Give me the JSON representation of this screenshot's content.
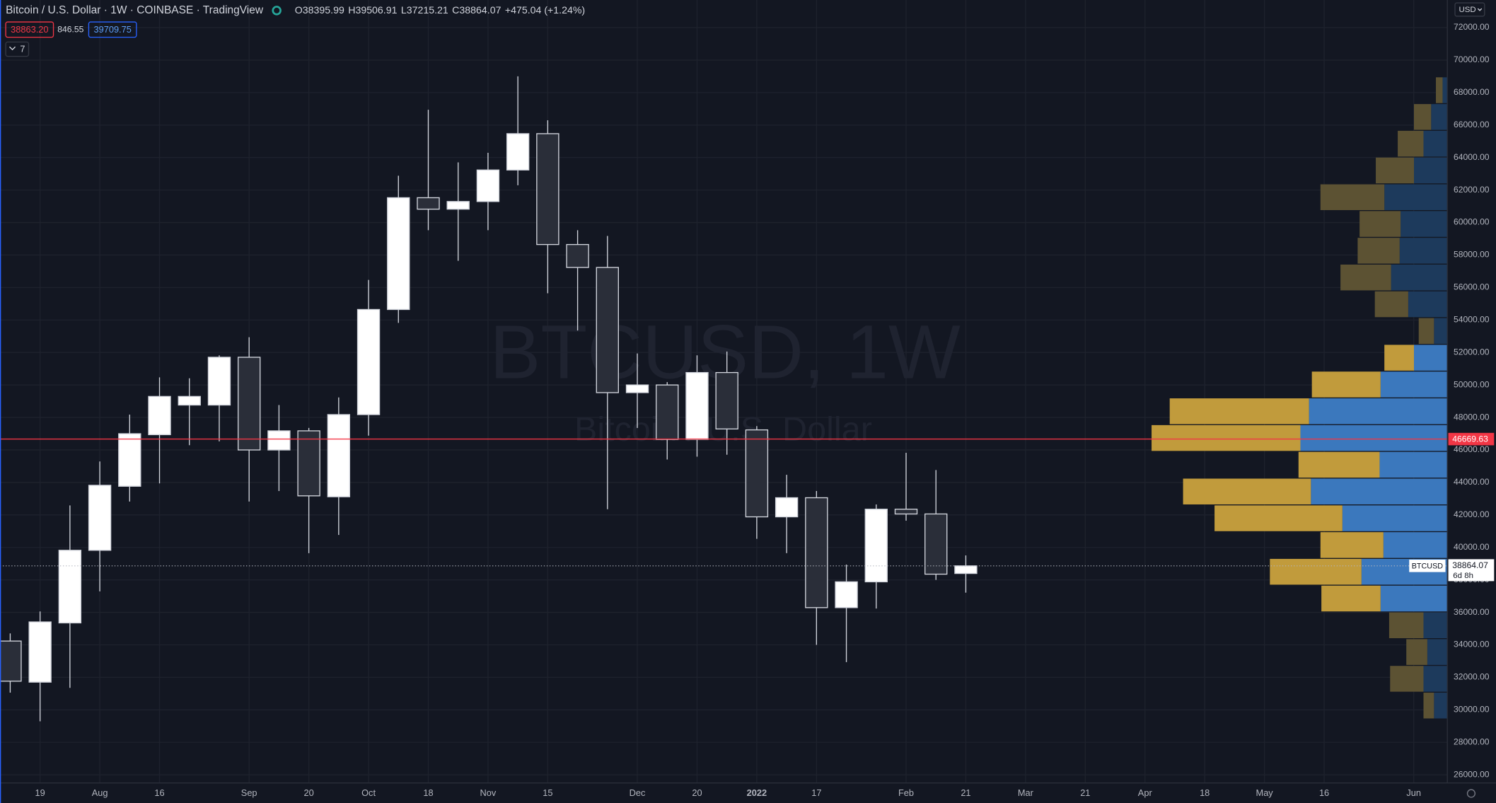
{
  "chart_data": {
    "type": "candlestick",
    "title": "Bitcoin / U.S. Dollar · 1W · COINBASE · TradingView",
    "header_values": [
      "O38395.99",
      "H39506.91",
      "L37215.21",
      "C38864.07",
      "+475.04 (+1.24%)"
    ],
    "bid": "38863.20",
    "spread": 846.55,
    "ask": "39709.75",
    "indicator_badge": "7",
    "currency": "USD",
    "watermark": "BTCUSD, 1W",
    "watermark_subtitle": "Bitcoin / U.S. Dollar",
    "symbol": "BTCUSD",
    "countdown": "6d 8h",
    "categories": [
      null,
      "19",
      null,
      "Aug",
      null,
      "16",
      null,
      null,
      "Sep",
      null,
      "20",
      null,
      "Oct",
      null,
      "18",
      null,
      "Nov",
      null,
      "15",
      null,
      null,
      "Dec",
      null,
      "20",
      null,
      "2022",
      null,
      "17",
      null,
      null,
      "Feb",
      null,
      "21",
      null,
      "Mar",
      null,
      "21",
      null,
      "Apr",
      null,
      "18",
      null,
      "May",
      null,
      "16",
      null,
      null,
      "Jun",
      null
    ],
    "open": [
      34235,
      31706,
      35353,
      39824,
      43765,
      46941,
      48765,
      48765,
      51706,
      46000,
      47176,
      43118,
      48176,
      54647,
      61529,
      60824,
      61294,
      63235,
      65471,
      58647,
      57235,
      49529,
      50000,
      46647,
      50765,
      47235,
      41882,
      43059,
      36294,
      37882,
      42353,
      42059,
      38395.99,
      null,
      null,
      null,
      null,
      null,
      null,
      null,
      null,
      null,
      null,
      null,
      null,
      null,
      null,
      null,
      null
    ],
    "high": [
      34706,
      36059,
      42588,
      45294,
      48176,
      50471,
      50412,
      51824,
      52941,
      48765,
      47353,
      49235,
      56471,
      62882,
      66941,
      63706,
      64294,
      69000,
      66294,
      59529,
      59176,
      51941,
      50176,
      51824,
      52059,
      47471,
      44471,
      43471,
      38941,
      42647,
      45824,
      44765,
      39506.91,
      null,
      null,
      null,
      null,
      null,
      null,
      null,
      null,
      null,
      null,
      null,
      null,
      null,
      null,
      null,
      null
    ],
    "low": [
      31059,
      29294,
      31353,
      37294,
      42824,
      43941,
      46294,
      46529,
      42824,
      43471,
      39647,
      40765,
      46882,
      53824,
      59529,
      57647,
      59529,
      62294,
      55647,
      53353,
      42353,
      47353,
      45412,
      45588,
      45706,
      40529,
      39647,
      34000,
      32941,
      36235,
      41647,
      38000,
      37215.21,
      null,
      null,
      null,
      null,
      null,
      null,
      null,
      null,
      null,
      null,
      null,
      null,
      null,
      null,
      null,
      null
    ],
    "close": [
      31765,
      35412,
      39824,
      43824,
      47000,
      49294,
      49294,
      51706,
      46000,
      47176,
      43176,
      48176,
      54647,
      61529,
      60824,
      61294,
      63235,
      65471,
      58647,
      57235,
      49529,
      50000,
      46647,
      50765,
      47294,
      41882,
      43059,
      36294,
      37882,
      42353,
      42059,
      38353,
      38864.07,
      null,
      null,
      null,
      null,
      null,
      null,
      null,
      null,
      null,
      null,
      null,
      null,
      null,
      null,
      null,
      null
    ],
    "up_color": "#ffffff",
    "down_color": "#2a2e39",
    "ylim": [
      25500,
      73700
    ],
    "yticks": [
      {
        "value": 26000,
        "label": "26000.00"
      },
      {
        "value": 28000,
        "label": "28000.00"
      },
      {
        "value": 30000,
        "label": "30000.00"
      },
      {
        "value": 32000,
        "label": "32000.00"
      },
      {
        "value": 34000,
        "label": "34000.00"
      },
      {
        "value": 36000,
        "label": "36000.00"
      },
      {
        "value": 38000,
        "label": "38000.00"
      },
      {
        "value": 40000,
        "label": "40000.00"
      },
      {
        "value": 42000,
        "label": "42000.00"
      },
      {
        "value": 44000,
        "label": "44000.00"
      },
      {
        "value": 46000,
        "label": "46000.00"
      },
      {
        "value": 48000,
        "label": "48000.00"
      },
      {
        "value": 50000,
        "label": "50000.00"
      },
      {
        "value": 52000,
        "label": "52000.00"
      },
      {
        "value": 54000,
        "label": "54000.00"
      },
      {
        "value": 56000,
        "label": "56000.00"
      },
      {
        "value": 58000,
        "label": "58000.00"
      },
      {
        "value": 60000,
        "label": "60000.00"
      },
      {
        "value": 62000,
        "label": "62000.00"
      },
      {
        "value": 64000,
        "label": "64000.00"
      },
      {
        "value": 66000,
        "label": "66000.00"
      },
      {
        "value": 68000,
        "label": "68000.00"
      },
      {
        "value": 70000,
        "label": "70000.00"
      },
      {
        "value": 72000,
        "label": "72000.00"
      }
    ],
    "grid": true,
    "hline": {
      "value": 46669.63,
      "color": "#f23645"
    },
    "volume_profile": {
      "bins": [
        68941,
        67294,
        65647,
        64000,
        62353,
        60706,
        59059,
        57412,
        55765,
        54118,
        52471,
        50824,
        49176,
        47529,
        45882,
        44235,
        42588,
        40941,
        39294,
        37647,
        36000,
        34353,
        32706,
        31059,
        29412
      ],
      "up": [
        5,
        17,
        25,
        35,
        66,
        49,
        50,
        59,
        41,
        14,
        35,
        70,
        145,
        154,
        71,
        143,
        110,
        67,
        90,
        70,
        25,
        21,
        25,
        14
      ],
      "down": [
        7,
        18,
        27,
        40,
        67,
        43,
        44,
        53,
        35,
        16,
        31,
        72,
        146,
        156,
        85,
        134,
        134,
        66,
        96,
        62,
        36,
        22,
        35,
        11
      ],
      "value_area": [
        false,
        false,
        false,
        false,
        false,
        false,
        false,
        false,
        false,
        false,
        true,
        true,
        true,
        true,
        true,
        true,
        true,
        true,
        true,
        true,
        false,
        false,
        false,
        false
      ],
      "up_color": "#3b78bd",
      "down_color": "#c19b3c",
      "up_color_dim": "#1d3a5c",
      "down_color_dim": "#5c5233"
    }
  }
}
